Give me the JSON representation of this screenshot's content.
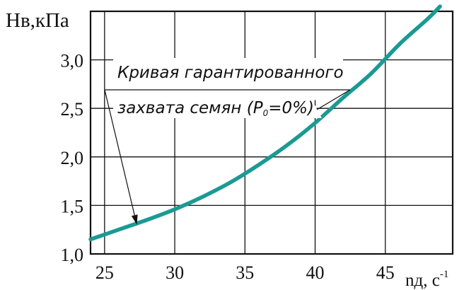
{
  "chart_data": {
    "type": "line",
    "ylabel": "Hв,кПа",
    "xlabel": "nд, c",
    "xlabel_exponent": "-1",
    "xlim": [
      24,
      49.8
    ],
    "ylim": [
      1.0,
      3.5
    ],
    "grid": true,
    "xticks": [
      25,
      30,
      35,
      40,
      45
    ],
    "xtick_labels": [
      "25",
      "30",
      "35",
      "40",
      "45"
    ],
    "yticks": [
      1.0,
      1.5,
      2.0,
      2.5,
      3.0
    ],
    "ytick_labels": [
      "1,0",
      "1,5",
      "2,0",
      "2,5",
      "3,0"
    ],
    "curve_color": "#1a9a93",
    "series": [
      {
        "x": [
          24,
          26,
          28,
          30,
          32,
          34,
          36,
          38,
          40,
          42,
          44,
          46,
          48,
          48.9
        ],
        "y": [
          1.15,
          1.25,
          1.35,
          1.46,
          1.59,
          1.74,
          1.92,
          2.12,
          2.35,
          2.61,
          2.86,
          3.16,
          3.42,
          3.55
        ]
      }
    ],
    "annotation": {
      "line1": "Кривая гарантированного",
      "line2_main": "захвата семян (P",
      "line2_sub": "0",
      "line2_end": "=0%)",
      "arrow_target": {
        "x": 27.3,
        "y": 1.3
      }
    }
  }
}
